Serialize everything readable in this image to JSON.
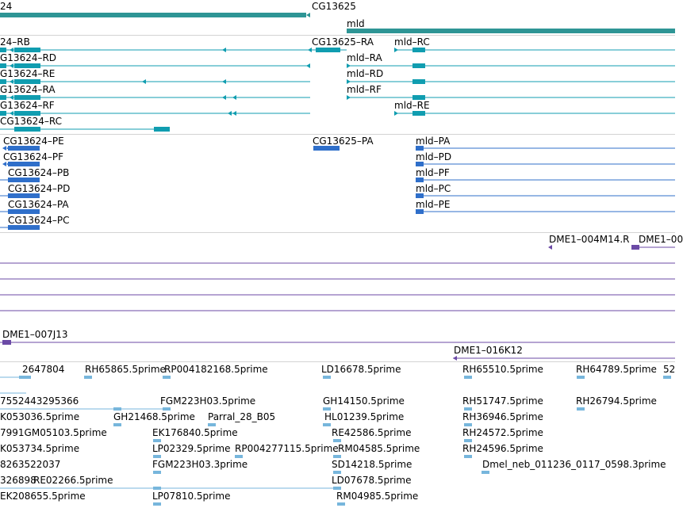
{
  "colors": {
    "gene": "#2e9595",
    "transcript": "#109db0",
    "protein": "#2f6fca",
    "bac": "#6b4aa6",
    "est": "#77b6dc",
    "separator": "#d3d3d3"
  },
  "tracks": {
    "genes": {
      "labels": [
        {
          "id": "g1",
          "text": "24"
        },
        {
          "id": "g2",
          "text": "CG13625"
        },
        {
          "id": "g3",
          "text": "mld"
        }
      ]
    },
    "transcripts": {
      "labels": [
        {
          "id": "t1",
          "text": "24–RB"
        },
        {
          "id": "t2",
          "text": "CG13625–RA"
        },
        {
          "id": "t3",
          "text": "mld–RC"
        },
        {
          "id": "t4",
          "text": "G13624–RD"
        },
        {
          "id": "t5",
          "text": "mld–RA"
        },
        {
          "id": "t6",
          "text": "G13624–RE"
        },
        {
          "id": "t7",
          "text": "mld–RD"
        },
        {
          "id": "t8",
          "text": "G13624–RA"
        },
        {
          "id": "t9",
          "text": "mld–RF"
        },
        {
          "id": "t10",
          "text": "G13624–RF"
        },
        {
          "id": "t11",
          "text": "mld–RE"
        },
        {
          "id": "t12",
          "text": "CG13624–RC"
        }
      ]
    },
    "proteins": {
      "labels": [
        {
          "id": "p1",
          "text": "CG13624–PE"
        },
        {
          "id": "p2",
          "text": "CG13625–PA"
        },
        {
          "id": "p3",
          "text": "mld–PA"
        },
        {
          "id": "p4",
          "text": "CG13624–PF"
        },
        {
          "id": "p5",
          "text": "mld–PD"
        },
        {
          "id": "p6",
          "text": "CG13624–PB"
        },
        {
          "id": "p7",
          "text": "mld–PF"
        },
        {
          "id": "p8",
          "text": "CG13624–PD"
        },
        {
          "id": "p9",
          "text": "mld–PC"
        },
        {
          "id": "p10",
          "text": "CG13624–PA"
        },
        {
          "id": "p11",
          "text": "mld–PE"
        },
        {
          "id": "p12",
          "text": "CG13624–PC"
        }
      ]
    },
    "bacs": {
      "labels": [
        {
          "id": "b1",
          "text": "DME1–004M14.R"
        },
        {
          "id": "b2",
          "text": "DME1–00"
        },
        {
          "id": "b3",
          "text": "DME1–007J13"
        },
        {
          "id": "b4",
          "text": "DME1–016K12"
        }
      ]
    },
    "ests": {
      "labels": [
        {
          "id": "e1",
          "text": "2647804"
        },
        {
          "id": "e2",
          "text": "RH65865.5prime"
        },
        {
          "id": "e3",
          "text": "RP004182168.5prime"
        },
        {
          "id": "e4",
          "text": "LD16678.5prime"
        },
        {
          "id": "e5",
          "text": "RH65510.5prime"
        },
        {
          "id": "e6",
          "text": "RH64789.5prime"
        },
        {
          "id": "e7",
          "text": "52"
        },
        {
          "id": "e8",
          "text": "7552443295366"
        },
        {
          "id": "e9",
          "text": "FGM223H03.5prime"
        },
        {
          "id": "e10",
          "text": "GH14150.5prime"
        },
        {
          "id": "e11",
          "text": "RH51747.5prime"
        },
        {
          "id": "e12",
          "text": "RH26794.5prime"
        },
        {
          "id": "e13",
          "text": "K053036.5prime"
        },
        {
          "id": "e14",
          "text": "GH21468.5prime"
        },
        {
          "id": "e15",
          "text": "Parral_28_B05"
        },
        {
          "id": "e16",
          "text": "HL01239.5prime"
        },
        {
          "id": "e17",
          "text": "RH36946.5prime"
        },
        {
          "id": "e18",
          "text": "7991GM05103.5prime"
        },
        {
          "id": "e19",
          "text": "EK176840.5prime"
        },
        {
          "id": "e20",
          "text": "RE42586.5prime"
        },
        {
          "id": "e21",
          "text": "RH24572.5prime"
        },
        {
          "id": "e22",
          "text": "K053734.5prime"
        },
        {
          "id": "e23",
          "text": "LP02329.5prime"
        },
        {
          "id": "e24",
          "text": "RP004277115.5prime"
        },
        {
          "id": "e25",
          "text": "RM04585.5prime"
        },
        {
          "id": "e26",
          "text": "RH24596.5prime"
        },
        {
          "id": "e27",
          "text": "8263522037"
        },
        {
          "id": "e28",
          "text": "FGM223H03.3prime"
        },
        {
          "id": "e29",
          "text": "SD14218.5prime"
        },
        {
          "id": "e30",
          "text": "Dmel_neb_011236_0117_0598.3prime"
        },
        {
          "id": "e31",
          "text": "326898"
        },
        {
          "id": "e32",
          "text": "RE02266.5prime"
        },
        {
          "id": "e33",
          "text": "LD07678.5prime"
        },
        {
          "id": "e34",
          "text": "EK208655.5prime"
        },
        {
          "id": "e35",
          "text": "LP07810.5prime"
        },
        {
          "id": "e36",
          "text": "RM04985.5prime"
        }
      ]
    }
  }
}
